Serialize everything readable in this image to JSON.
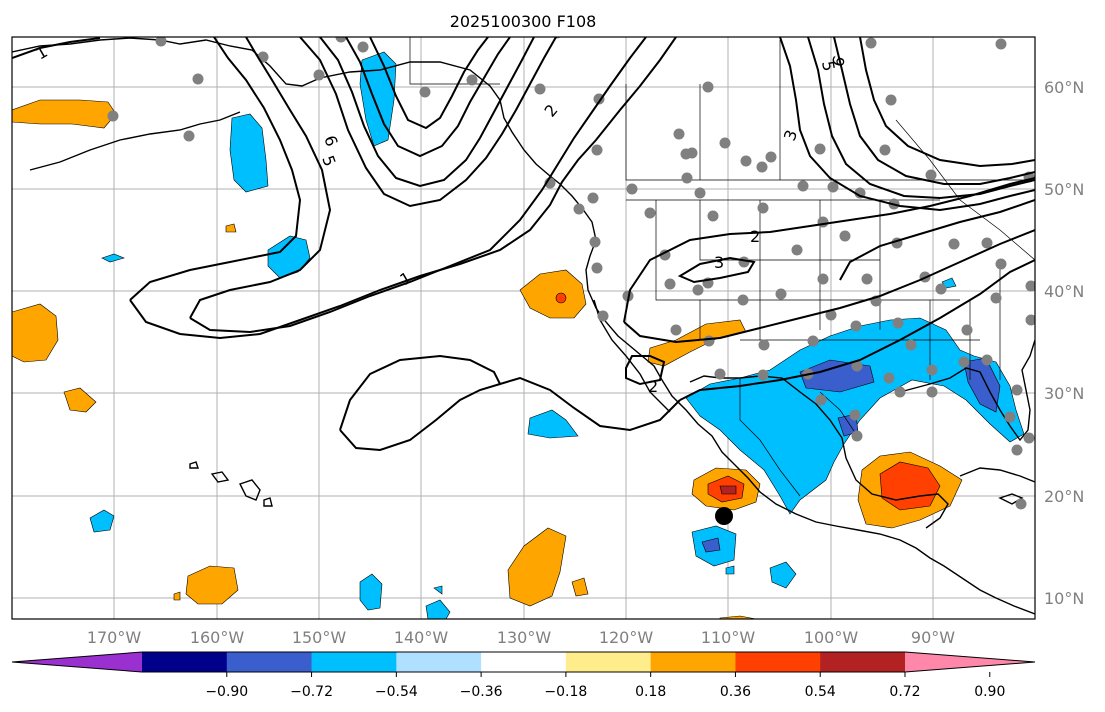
{
  "title": "2025100300 F108",
  "map": {
    "lon_labels": [
      "170°W",
      "160°W",
      "150°W",
      "140°W",
      "130°W",
      "120°W",
      "110°W",
      "100°W",
      "90°W"
    ],
    "lat_labels": [
      "60°N",
      "50°N",
      "40°N",
      "30°N",
      "20°N",
      "10°N"
    ],
    "contour_labels": [
      "1",
      "1",
      "2",
      "2",
      "2",
      "3",
      "3",
      "5",
      "6",
      "6",
      "5"
    ]
  },
  "colorbar": {
    "ticks": [
      "−0.90",
      "−0.72",
      "−0.54",
      "−0.36",
      "−0.18",
      "0.18",
      "0.36",
      "0.54",
      "0.72",
      "0.90"
    ],
    "colors": [
      "#9b30d0",
      "#00008b",
      "#3a5fcd",
      "#00bfff",
      "#b0e0ff",
      "#ffffff",
      "#ffec8b",
      "#ffa500",
      "#ff4000",
      "#b22222",
      "#ff88aa"
    ]
  }
}
